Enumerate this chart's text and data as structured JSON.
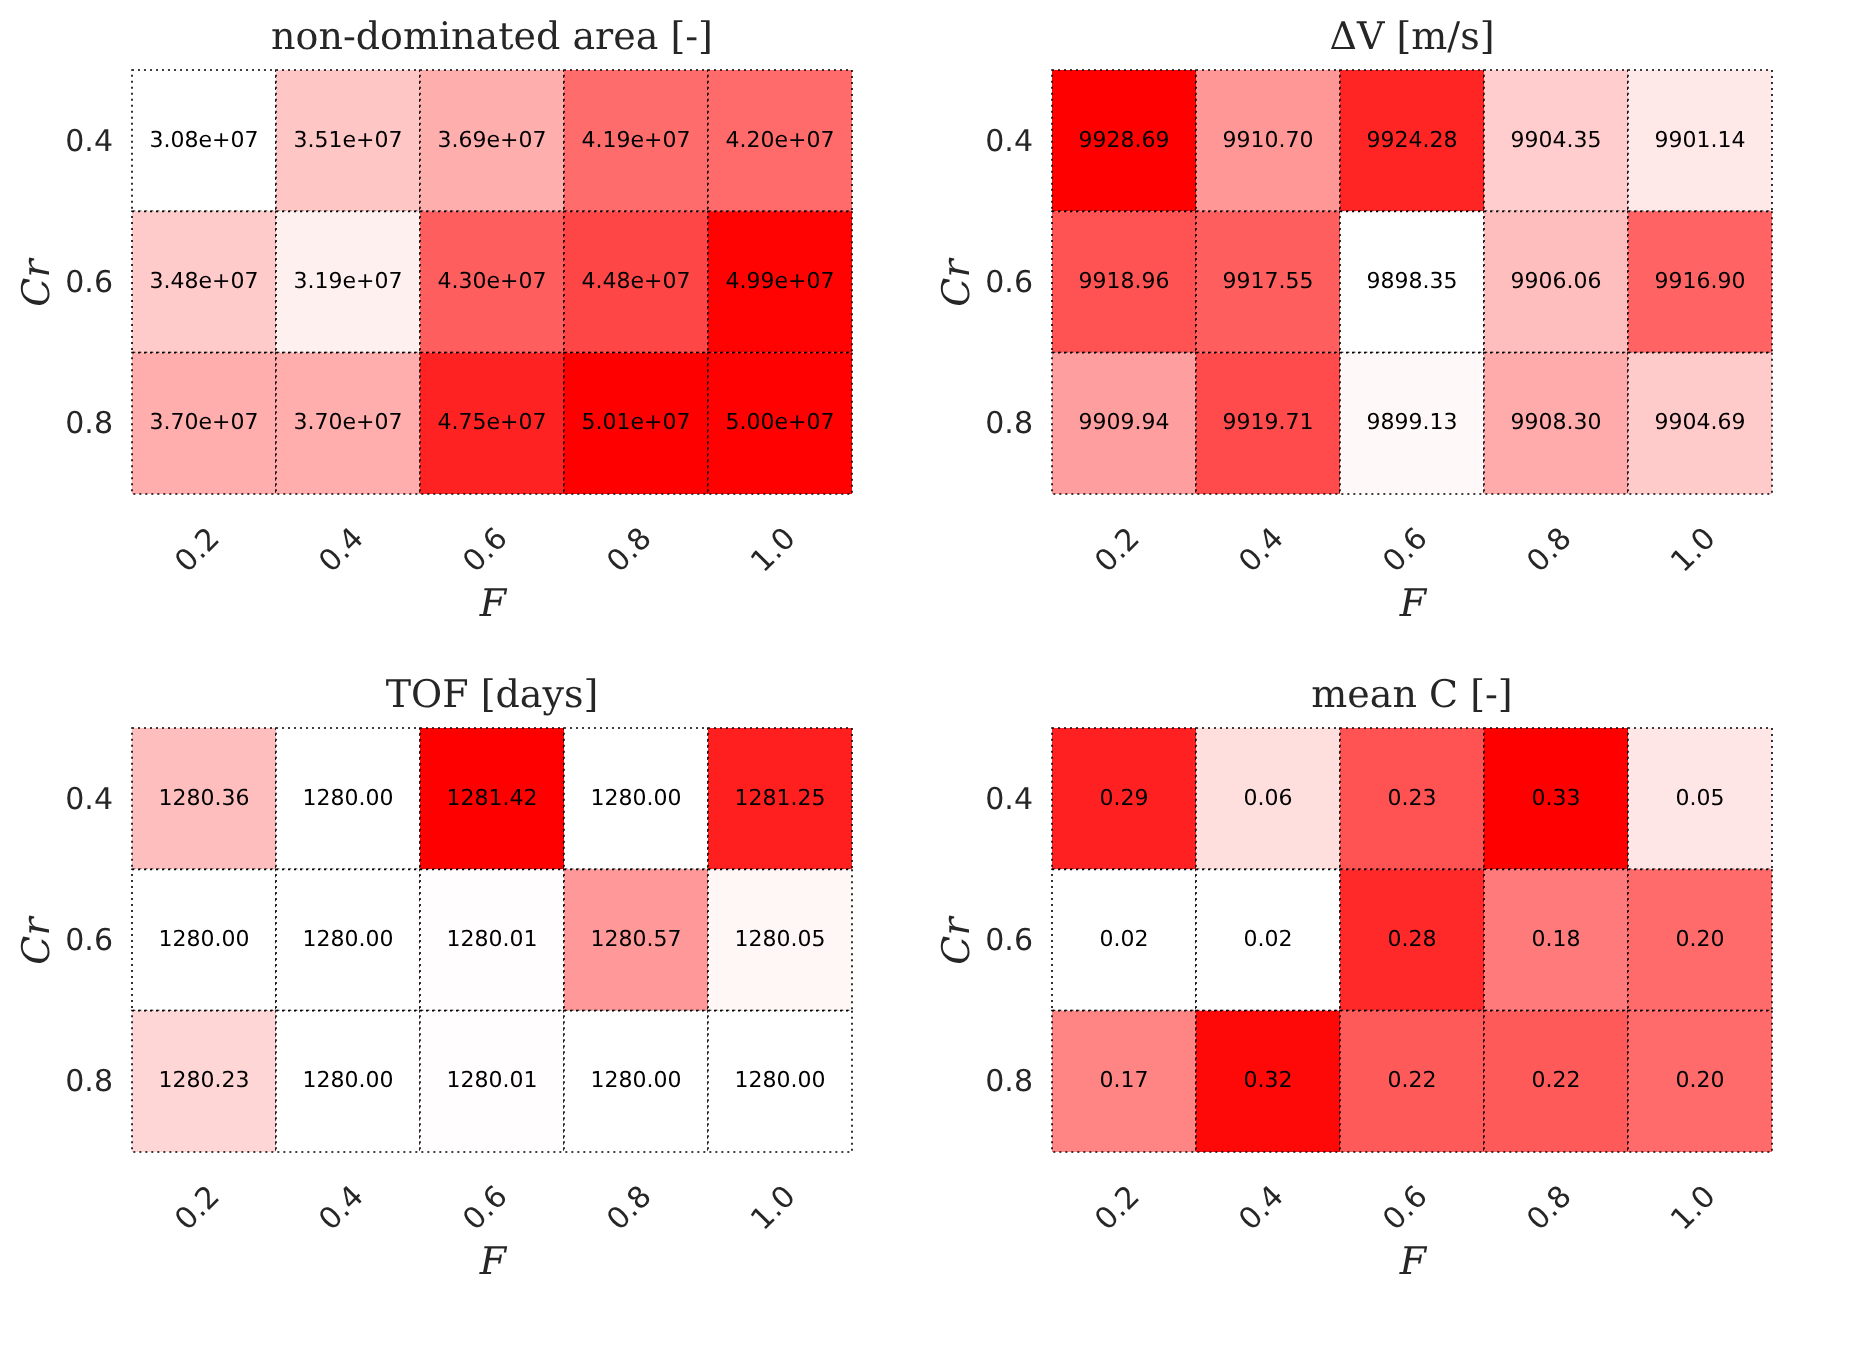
{
  "chart_data": [
    {
      "type": "heatmap",
      "title": "non-dominated area [-]",
      "xlabel": "F",
      "ylabel": "Cr",
      "categories": [
        "0.2",
        "0.4",
        "0.6",
        "0.8",
        "1.0"
      ],
      "y_categories": [
        "0.4",
        "0.6",
        "0.8"
      ],
      "cells": [
        [
          30800000,
          35100000,
          36900000,
          41900000,
          42000000
        ],
        [
          34800000,
          31900000,
          43000000,
          44800000,
          49900000
        ],
        [
          37000000,
          37000000,
          47500000,
          50100000,
          50000000
        ]
      ],
      "cell_labels": [
        [
          "3.08e+07",
          "3.51e+07",
          "3.69e+07",
          "4.19e+07",
          "4.20e+07"
        ],
        [
          "3.48e+07",
          "3.19e+07",
          "4.30e+07",
          "4.48e+07",
          "4.99e+07"
        ],
        [
          "3.70e+07",
          "3.70e+07",
          "4.75e+07",
          "5.01e+07",
          "5.00e+07"
        ]
      ]
    },
    {
      "type": "heatmap",
      "title": "ΔV [m/s]",
      "xlabel": "F",
      "ylabel": "Cr",
      "categories": [
        "0.2",
        "0.4",
        "0.6",
        "0.8",
        "1.0"
      ],
      "y_categories": [
        "0.4",
        "0.6",
        "0.8"
      ],
      "cells": [
        [
          9928.69,
          9910.7,
          9924.28,
          9904.35,
          9901.14
        ],
        [
          9918.96,
          9917.55,
          9898.35,
          9906.06,
          9916.9
        ],
        [
          9909.94,
          9919.71,
          9899.13,
          9908.3,
          9904.69
        ]
      ],
      "cell_labels": [
        [
          "9928.69",
          "9910.70",
          "9924.28",
          "9904.35",
          "9901.14"
        ],
        [
          "9918.96",
          "9917.55",
          "9898.35",
          "9906.06",
          "9916.90"
        ],
        [
          "9909.94",
          "9919.71",
          "9899.13",
          "9908.30",
          "9904.69"
        ]
      ]
    },
    {
      "type": "heatmap",
      "title": "TOF [days]",
      "xlabel": "F",
      "ylabel": "Cr",
      "categories": [
        "0.2",
        "0.4",
        "0.6",
        "0.8",
        "1.0"
      ],
      "y_categories": [
        "0.4",
        "0.6",
        "0.8"
      ],
      "cells": [
        [
          1280.36,
          1280,
          1281.42,
          1280,
          1281.25
        ],
        [
          1280,
          1280,
          1280.01,
          1280.57,
          1280.05
        ],
        [
          1280.23,
          1280,
          1280.01,
          1280,
          1280
        ]
      ],
      "cell_labels": [
        [
          "1280.36",
          "1280.00",
          "1281.42",
          "1280.00",
          "1281.25"
        ],
        [
          "1280.00",
          "1280.00",
          "1280.01",
          "1280.57",
          "1280.05"
        ],
        [
          "1280.23",
          "1280.00",
          "1280.01",
          "1280.00",
          "1280.00"
        ]
      ]
    },
    {
      "type": "heatmap",
      "title": "mean C [-]",
      "xlabel": "F",
      "ylabel": "Cr",
      "categories": [
        "0.2",
        "0.4",
        "0.6",
        "0.8",
        "1.0"
      ],
      "y_categories": [
        "0.4",
        "0.6",
        "0.8"
      ],
      "cells": [
        [
          0.29,
          0.06,
          0.23,
          0.33,
          0.05
        ],
        [
          0.02,
          0.02,
          0.28,
          0.18,
          0.2
        ],
        [
          0.17,
          0.32,
          0.22,
          0.22,
          0.2
        ]
      ],
      "cell_labels": [
        [
          "0.29",
          "0.06",
          "0.23",
          "0.33",
          "0.05"
        ],
        [
          "0.02",
          "0.02",
          "0.28",
          "0.18",
          "0.20"
        ],
        [
          "0.17",
          "0.32",
          "0.22",
          "0.22",
          "0.20"
        ]
      ]
    }
  ]
}
